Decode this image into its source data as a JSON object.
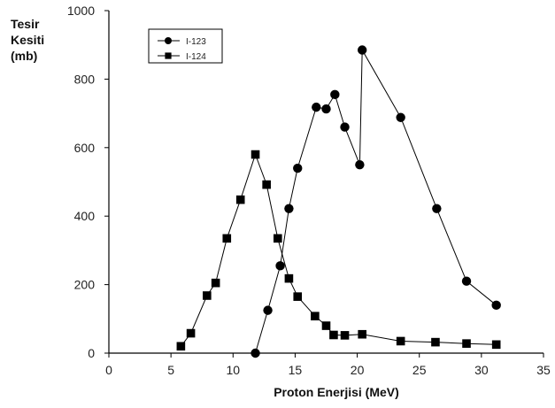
{
  "chart_data": {
    "type": "line",
    "ylabel_lines": [
      "Tesir",
      "Kesiti",
      "(mb)"
    ],
    "xlabel": "Proton Enerjisi (MeV)",
    "xlim": [
      0,
      35
    ],
    "ylim": [
      0,
      1000
    ],
    "x_ticks": [
      0,
      5,
      10,
      15,
      20,
      25,
      30,
      35
    ],
    "y_ticks": [
      0,
      200,
      400,
      600,
      800,
      1000
    ],
    "grid": false,
    "legend_position": "top-left",
    "series": [
      {
        "name": "I-123",
        "marker": "circle",
        "color": "#000000",
        "points": [
          [
            11.8,
            0
          ],
          [
            12.8,
            125
          ],
          [
            13.8,
            255
          ],
          [
            14.5,
            422
          ],
          [
            15.2,
            540
          ],
          [
            16.7,
            718
          ],
          [
            17.5,
            713
          ],
          [
            18.2,
            755
          ],
          [
            19.0,
            660
          ],
          [
            20.2,
            550
          ],
          [
            20.4,
            885
          ],
          [
            23.5,
            688
          ],
          [
            26.4,
            422
          ],
          [
            28.8,
            210
          ],
          [
            31.2,
            140
          ]
        ]
      },
      {
        "name": "I-124",
        "marker": "square",
        "color": "#000000",
        "points": [
          [
            5.8,
            20
          ],
          [
            6.6,
            58
          ],
          [
            7.9,
            168
          ],
          [
            8.6,
            205
          ],
          [
            9.5,
            335
          ],
          [
            10.6,
            448
          ],
          [
            11.8,
            580
          ],
          [
            12.7,
            492
          ],
          [
            13.6,
            335
          ],
          [
            14.5,
            218
          ],
          [
            15.2,
            165
          ],
          [
            16.6,
            108
          ],
          [
            17.5,
            80
          ],
          [
            18.1,
            53
          ],
          [
            19.0,
            52
          ],
          [
            20.4,
            55
          ],
          [
            23.5,
            35
          ],
          [
            26.3,
            32
          ],
          [
            28.8,
            28
          ],
          [
            31.2,
            25
          ]
        ]
      }
    ]
  }
}
